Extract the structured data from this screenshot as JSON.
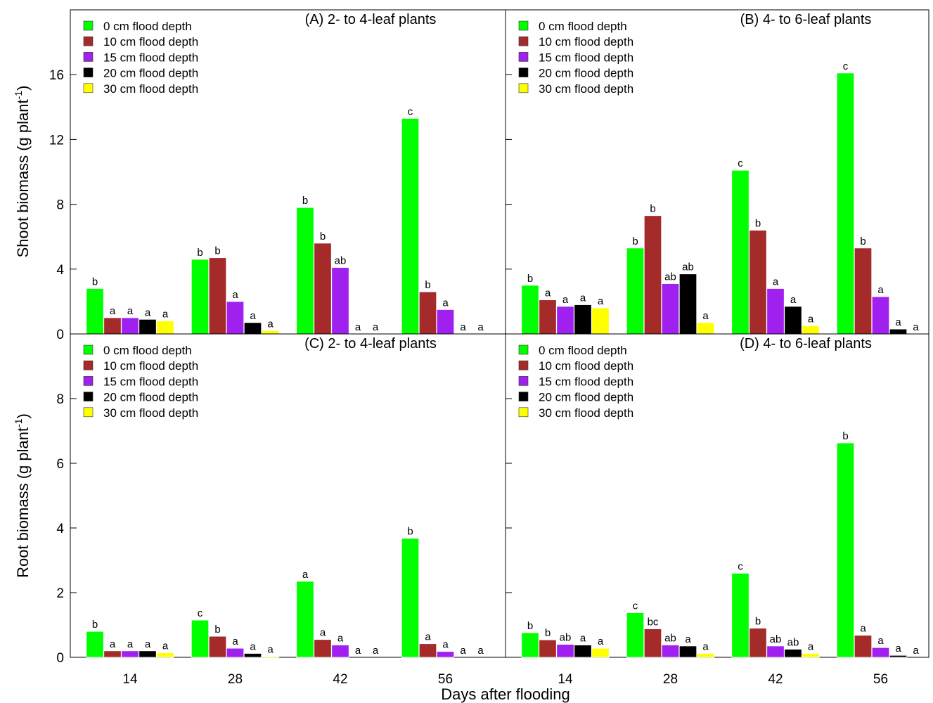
{
  "figure": {
    "ylabel_top": "Shoot biomass (g plant",
    "ylabel_bottom": "Root biomass (g plant",
    "ylabel_sup": "-1",
    "ylabel_close": ")",
    "xlabel": "Days after flooding"
  },
  "colors": [
    "#00ff00",
    "#a52a2a",
    "#a020f0",
    "#000000",
    "#ffff00"
  ],
  "chart_data": [
    {
      "type": "bar",
      "title": "(A) 2- to 4-leaf plants",
      "xlabel": "Days after flooding",
      "ylabel": "Shoot biomass (g plant-1)",
      "categories": [
        "14",
        "28",
        "42",
        "56"
      ],
      "ylim": [
        0,
        20
      ],
      "yticks": [
        0,
        4,
        8,
        12,
        16
      ],
      "legend": "top-left",
      "series": [
        {
          "name": "0 cm flood depth",
          "values": [
            2.8,
            4.6,
            7.8,
            13.3
          ],
          "labels": [
            "b",
            "b",
            "b",
            "c"
          ]
        },
        {
          "name": "10 cm flood depth",
          "values": [
            1.0,
            4.7,
            5.6,
            2.6
          ],
          "labels": [
            "a",
            "b",
            "b",
            "b"
          ]
        },
        {
          "name": "15 cm flood depth",
          "values": [
            1.0,
            2.0,
            4.1,
            1.5
          ],
          "labels": [
            "a",
            "a",
            "ab",
            "a"
          ]
        },
        {
          "name": "20 cm flood depth",
          "values": [
            0.9,
            0.7,
            0,
            0
          ],
          "labels": [
            "a",
            "a",
            "a",
            "a"
          ]
        },
        {
          "name": "30 cm flood depth",
          "values": [
            0.8,
            0.2,
            0,
            0
          ],
          "labels": [
            "a",
            "a",
            "a",
            "a"
          ]
        }
      ]
    },
    {
      "type": "bar",
      "title": "(B) 4- to 6-leaf plants",
      "xlabel": "Days after flooding",
      "ylabel": "Shoot biomass (g plant-1)",
      "categories": [
        "14",
        "28",
        "42",
        "56"
      ],
      "ylim": [
        0,
        20
      ],
      "yticks": [
        0,
        4,
        8,
        12,
        16
      ],
      "legend": "top-left",
      "series": [
        {
          "name": "0 cm flood depth",
          "values": [
            3.0,
            5.3,
            10.1,
            16.1
          ],
          "labels": [
            "b",
            "b",
            "c",
            "c"
          ]
        },
        {
          "name": "10 cm flood depth",
          "values": [
            2.1,
            7.3,
            6.4,
            5.3
          ],
          "labels": [
            "a",
            "b",
            "b",
            "b"
          ]
        },
        {
          "name": "15 cm flood depth",
          "values": [
            1.7,
            3.1,
            2.8,
            2.3
          ],
          "labels": [
            "a",
            "ab",
            "a",
            "a"
          ]
        },
        {
          "name": "20 cm flood depth",
          "values": [
            1.8,
            3.7,
            1.7,
            0.3
          ],
          "labels": [
            "a",
            "ab",
            "a",
            "a"
          ]
        },
        {
          "name": "30 cm flood depth",
          "values": [
            1.6,
            0.7,
            0.5,
            0
          ],
          "labels": [
            "a",
            "a",
            "a",
            "a"
          ]
        }
      ]
    },
    {
      "type": "bar",
      "title": "(C) 2- to 4-leaf plants",
      "xlabel": "Days after flooding",
      "ylabel": "Root biomass (g plant-1)",
      "categories": [
        "14",
        "28",
        "42",
        "56"
      ],
      "ylim": [
        0,
        10
      ],
      "yticks": [
        0,
        2,
        4,
        6,
        8
      ],
      "legend": "top-left",
      "series": [
        {
          "name": "0 cm flood depth",
          "values": [
            0.8,
            1.15,
            2.35,
            3.68
          ],
          "labels": [
            "b",
            "c",
            "a",
            "b"
          ]
        },
        {
          "name": "10 cm flood depth",
          "values": [
            0.2,
            0.65,
            0.55,
            0.42
          ],
          "labels": [
            "a",
            "b",
            "a",
            "a"
          ]
        },
        {
          "name": "15 cm flood depth",
          "values": [
            0.2,
            0.28,
            0.38,
            0.18
          ],
          "labels": [
            "a",
            "a",
            "a",
            "a"
          ]
        },
        {
          "name": "20 cm flood depth",
          "values": [
            0.2,
            0.12,
            0,
            0
          ],
          "labels": [
            "a",
            "a",
            "a",
            "a"
          ]
        },
        {
          "name": "30 cm flood depth",
          "values": [
            0.14,
            0.03,
            0,
            0
          ],
          "labels": [
            "a",
            "a",
            "a",
            "a"
          ]
        }
      ]
    },
    {
      "type": "bar",
      "title": "(D) 4- to 6-leaf plants",
      "xlabel": "Days after flooding",
      "ylabel": "Root biomass (g plant-1)",
      "categories": [
        "14",
        "28",
        "42",
        "56"
      ],
      "ylim": [
        0,
        10
      ],
      "yticks": [
        0,
        2,
        4,
        6,
        8
      ],
      "legend": "top-left",
      "series": [
        {
          "name": "0 cm flood depth",
          "values": [
            0.76,
            1.38,
            2.6,
            6.63
          ],
          "labels": [
            "b",
            "c",
            "c",
            "b"
          ]
        },
        {
          "name": "10 cm flood depth",
          "values": [
            0.54,
            0.88,
            0.9,
            0.68
          ],
          "labels": [
            "b",
            "bc",
            "b",
            "a"
          ]
        },
        {
          "name": "15 cm flood depth",
          "values": [
            0.4,
            0.38,
            0.35,
            0.3
          ],
          "labels": [
            "ab",
            "ab",
            "ab",
            "a"
          ]
        },
        {
          "name": "20 cm flood depth",
          "values": [
            0.38,
            0.35,
            0.25,
            0.06
          ],
          "labels": [
            "a",
            "a",
            "ab",
            "a"
          ]
        },
        {
          "name": "30 cm flood depth",
          "values": [
            0.28,
            0.12,
            0.12,
            0
          ],
          "labels": [
            "a",
            "a",
            "a",
            "a"
          ]
        }
      ]
    }
  ]
}
